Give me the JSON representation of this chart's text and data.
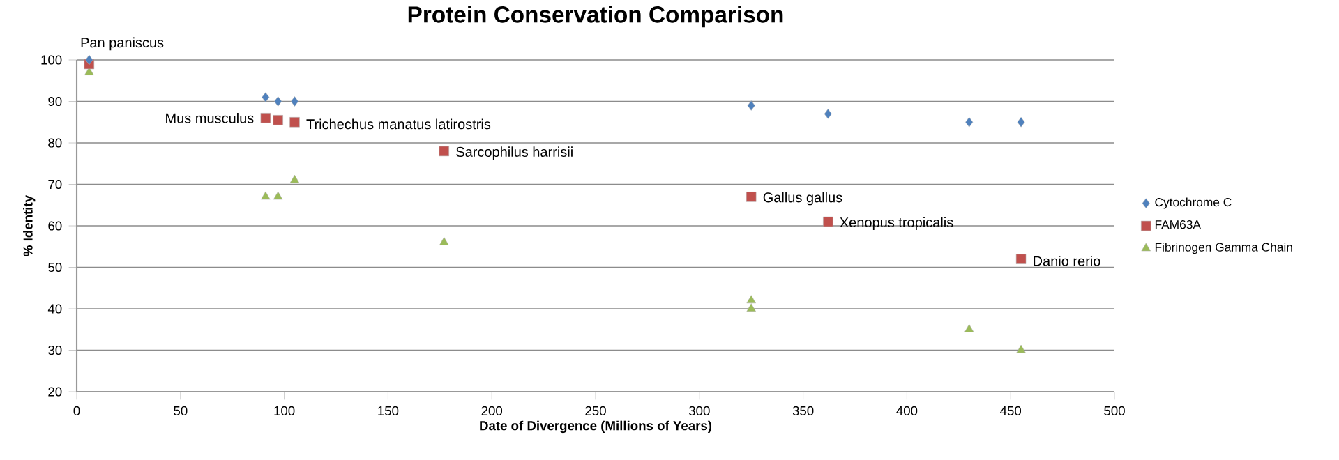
{
  "chart_data": {
    "type": "scatter",
    "title": "Protein Conservation  Comparison",
    "xlabel": "Date of Divergence (Millions of Years)",
    "ylabel": "% Identity",
    "xlim": [
      0,
      500
    ],
    "xticks": [
      0,
      50,
      100,
      150,
      200,
      250,
      300,
      350,
      400,
      450,
      500
    ],
    "ylim": [
      20,
      100
    ],
    "yticks": [
      20,
      30,
      40,
      50,
      60,
      70,
      80,
      90,
      100
    ],
    "grid": "y",
    "legend": "right",
    "series": [
      {
        "name": "Cytochrome C",
        "color": "#4f81bd",
        "marker": "diamond",
        "x": [
          6,
          91,
          97,
          105,
          325,
          362,
          430,
          455
        ],
        "values": [
          100,
          91,
          90,
          90,
          89,
          87,
          85,
          85
        ]
      },
      {
        "name": "FAM63A",
        "color": "#c0504d",
        "marker": "square",
        "x": [
          6,
          91,
          97,
          105,
          177,
          325,
          362,
          455
        ],
        "values": [
          99,
          86,
          85.5,
          85,
          78,
          67,
          61,
          52
        ]
      },
      {
        "name": "Fibrinogen Gamma Chain",
        "color": "#9bbb59",
        "marker": "triangle",
        "x": [
          6,
          91,
          97,
          105,
          177,
          325,
          325,
          430,
          455
        ],
        "values": [
          97,
          67,
          67,
          71,
          56,
          42,
          40,
          35,
          30
        ]
      }
    ],
    "annotations": [
      {
        "text": "Pan paniscus",
        "x": 6,
        "y": 100
      },
      {
        "text": "Mus musculus",
        "x": 91,
        "y": 86
      },
      {
        "text": "Trichechus manatus latirostris",
        "x": 105,
        "y": 85
      },
      {
        "text": "Sarcophilus harrisii",
        "x": 177,
        "y": 78
      },
      {
        "text": "Gallus gallus",
        "x": 325,
        "y": 67
      },
      {
        "text": "Xenopus  tropicalis",
        "x": 362,
        "y": 61
      },
      {
        "text": "Danio rerio",
        "x": 455,
        "y": 52
      }
    ]
  }
}
